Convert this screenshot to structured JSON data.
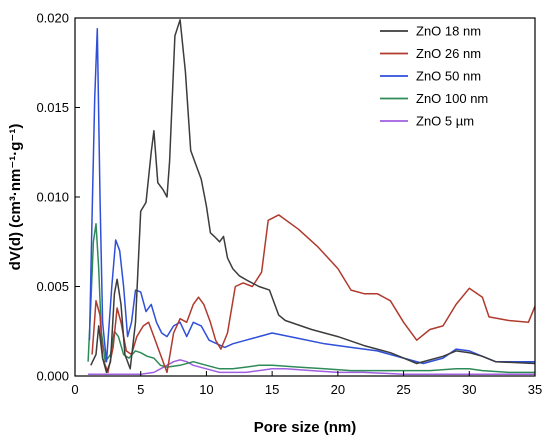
{
  "chart_data": {
    "type": "line",
    "xlabel": "Pore size (nm)",
    "ylabel": "dV(d) (cm³·nm⁻¹·g⁻¹)",
    "xlim": [
      0,
      35
    ],
    "ylim": [
      0,
      0.02
    ],
    "x_ticks": [
      "0",
      "5",
      "10",
      "15",
      "20",
      "25",
      "30",
      "35"
    ],
    "y_ticks": [
      "0.000",
      "0.005",
      "0.010",
      "0.015",
      "0.020"
    ],
    "grid": false,
    "legend_position": "top-right",
    "series": [
      {
        "name": "ZnO 18 nm",
        "color": "#3c3c3c",
        "points": [
          [
            1.2,
            0.0006
          ],
          [
            1.6,
            0.0012
          ],
          [
            1.8,
            0.0028
          ],
          [
            2.1,
            0.001
          ],
          [
            2.4,
            0.0002
          ],
          [
            2.7,
            0.0008
          ],
          [
            3.0,
            0.0046
          ],
          [
            3.2,
            0.0054
          ],
          [
            3.5,
            0.004
          ],
          [
            3.8,
            0.0012
          ],
          [
            4.2,
            0.0004
          ],
          [
            4.6,
            0.003
          ],
          [
            5.0,
            0.0092
          ],
          [
            5.4,
            0.0097
          ],
          [
            5.8,
            0.0125
          ],
          [
            6.0,
            0.0137
          ],
          [
            6.3,
            0.0108
          ],
          [
            6.7,
            0.0104
          ],
          [
            7.0,
            0.01
          ],
          [
            7.2,
            0.012
          ],
          [
            7.6,
            0.019
          ],
          [
            8.0,
            0.0199
          ],
          [
            8.4,
            0.017
          ],
          [
            8.8,
            0.0126
          ],
          [
            9.2,
            0.0118
          ],
          [
            9.6,
            0.011
          ],
          [
            10.0,
            0.0095
          ],
          [
            10.3,
            0.008
          ],
          [
            10.6,
            0.0078
          ],
          [
            11.0,
            0.0075
          ],
          [
            11.3,
            0.0078
          ],
          [
            11.6,
            0.0066
          ],
          [
            12.0,
            0.006
          ],
          [
            12.5,
            0.0056
          ],
          [
            13.2,
            0.0053
          ],
          [
            14.0,
            0.005
          ],
          [
            14.8,
            0.0048
          ],
          [
            15.5,
            0.0034
          ],
          [
            16.0,
            0.0031
          ],
          [
            18.0,
            0.0026
          ],
          [
            20.0,
            0.0022
          ],
          [
            22.0,
            0.0017
          ],
          [
            24.0,
            0.0013
          ],
          [
            25.0,
            0.001
          ],
          [
            26.0,
            0.0007
          ],
          [
            27.0,
            0.0009
          ],
          [
            28.0,
            0.0011
          ],
          [
            29.0,
            0.0014
          ],
          [
            30.0,
            0.0013
          ],
          [
            31.0,
            0.0011
          ],
          [
            32.0,
            0.0008
          ],
          [
            35.0,
            0.0007
          ]
        ]
      },
      {
        "name": "ZnO 26 nm",
        "color": "#b03a2e",
        "points": [
          [
            1.3,
            0.0012
          ],
          [
            1.6,
            0.0042
          ],
          [
            1.9,
            0.0034
          ],
          [
            2.1,
            0.001
          ],
          [
            2.5,
            0.0002
          ],
          [
            2.9,
            0.0016
          ],
          [
            3.2,
            0.0038
          ],
          [
            3.5,
            0.003
          ],
          [
            3.9,
            0.0014
          ],
          [
            4.3,
            0.0012
          ],
          [
            4.7,
            0.0022
          ],
          [
            5.2,
            0.0028
          ],
          [
            5.6,
            0.003
          ],
          [
            6.0,
            0.0022
          ],
          [
            6.4,
            0.0014
          ],
          [
            7.0,
            0.0002
          ],
          [
            7.5,
            0.0024
          ],
          [
            8.0,
            0.0032
          ],
          [
            8.5,
            0.003
          ],
          [
            9.0,
            0.004
          ],
          [
            9.4,
            0.0044
          ],
          [
            9.8,
            0.004
          ],
          [
            10.3,
            0.003
          ],
          [
            10.7,
            0.002
          ],
          [
            11.1,
            0.0015
          ],
          [
            11.6,
            0.0024
          ],
          [
            12.2,
            0.005
          ],
          [
            12.8,
            0.0052
          ],
          [
            13.5,
            0.005
          ],
          [
            14.2,
            0.0058
          ],
          [
            14.7,
            0.0087
          ],
          [
            15.5,
            0.009
          ],
          [
            17.0,
            0.0082
          ],
          [
            18.5,
            0.0072
          ],
          [
            20.0,
            0.006
          ],
          [
            21.0,
            0.0048
          ],
          [
            22.0,
            0.0046
          ],
          [
            23.0,
            0.0046
          ],
          [
            24.0,
            0.0042
          ],
          [
            25.0,
            0.003
          ],
          [
            26.0,
            0.002
          ],
          [
            27.0,
            0.0026
          ],
          [
            28.0,
            0.0028
          ],
          [
            29.0,
            0.004
          ],
          [
            30.0,
            0.0049
          ],
          [
            31.0,
            0.0044
          ],
          [
            31.5,
            0.0033
          ],
          [
            33.0,
            0.0031
          ],
          [
            34.5,
            0.003
          ],
          [
            35.0,
            0.0039
          ]
        ]
      },
      {
        "name": "ZnO 50 nm",
        "color": "#2f4fd8",
        "points": [
          [
            1.1,
            0.002
          ],
          [
            1.3,
            0.009
          ],
          [
            1.5,
            0.0155
          ],
          [
            1.7,
            0.0194
          ],
          [
            1.9,
            0.01
          ],
          [
            2.1,
            0.003
          ],
          [
            2.4,
            0.0008
          ],
          [
            2.8,
            0.005
          ],
          [
            3.1,
            0.0076
          ],
          [
            3.4,
            0.007
          ],
          [
            3.7,
            0.005
          ],
          [
            4.0,
            0.0022
          ],
          [
            4.3,
            0.003
          ],
          [
            4.6,
            0.0048
          ],
          [
            5.0,
            0.0047
          ],
          [
            5.4,
            0.0036
          ],
          [
            5.8,
            0.004
          ],
          [
            6.2,
            0.003
          ],
          [
            6.6,
            0.0024
          ],
          [
            7.0,
            0.0022
          ],
          [
            7.5,
            0.0028
          ],
          [
            8.0,
            0.003
          ],
          [
            8.5,
            0.0022
          ],
          [
            9.0,
            0.003
          ],
          [
            9.6,
            0.0028
          ],
          [
            10.2,
            0.002
          ],
          [
            10.8,
            0.0018
          ],
          [
            11.4,
            0.0016
          ],
          [
            12.0,
            0.0018
          ],
          [
            13.0,
            0.002
          ],
          [
            14.0,
            0.0022
          ],
          [
            15.0,
            0.0024
          ],
          [
            17.0,
            0.0021
          ],
          [
            19.0,
            0.0018
          ],
          [
            21.0,
            0.0016
          ],
          [
            23.0,
            0.0014
          ],
          [
            25.0,
            0.001
          ],
          [
            26.5,
            0.0007
          ],
          [
            28.0,
            0.001
          ],
          [
            29.0,
            0.0015
          ],
          [
            30.0,
            0.0014
          ],
          [
            31.0,
            0.0011
          ],
          [
            32.0,
            0.0008
          ],
          [
            35.0,
            0.0008
          ]
        ]
      },
      {
        "name": "ZnO 100 nm",
        "color": "#2e8b57",
        "points": [
          [
            1.0,
            0.0008
          ],
          [
            1.2,
            0.004
          ],
          [
            1.4,
            0.0075
          ],
          [
            1.6,
            0.0085
          ],
          [
            1.8,
            0.006
          ],
          [
            2.0,
            0.0025
          ],
          [
            2.3,
            0.0008
          ],
          [
            2.7,
            0.0012
          ],
          [
            3.0,
            0.0025
          ],
          [
            3.3,
            0.0022
          ],
          [
            3.7,
            0.0012
          ],
          [
            4.1,
            0.001
          ],
          [
            4.6,
            0.0014
          ],
          [
            5.0,
            0.0013
          ],
          [
            5.5,
            0.0011
          ],
          [
            6.0,
            0.001
          ],
          [
            6.5,
            0.0006
          ],
          [
            7.0,
            0.0005
          ],
          [
            8.0,
            0.0006
          ],
          [
            9.0,
            0.0008
          ],
          [
            10.0,
            0.0006
          ],
          [
            11.0,
            0.0004
          ],
          [
            12.0,
            0.0004
          ],
          [
            13.0,
            0.0005
          ],
          [
            14.0,
            0.0006
          ],
          [
            15.0,
            0.0006
          ],
          [
            17.0,
            0.0005
          ],
          [
            19.0,
            0.0004
          ],
          [
            21.0,
            0.0003
          ],
          [
            23.0,
            0.0003
          ],
          [
            25.0,
            0.0003
          ],
          [
            27.0,
            0.0003
          ],
          [
            29.0,
            0.0004
          ],
          [
            30.0,
            0.0004
          ],
          [
            31.0,
            0.0003
          ],
          [
            33.0,
            0.0002
          ],
          [
            35.0,
            0.0002
          ]
        ]
      },
      {
        "name": "ZnO 5 µm",
        "color": "#a05ee0",
        "points": [
          [
            1.0,
            0.0001
          ],
          [
            2.0,
            0.0001
          ],
          [
            3.0,
            0.0001
          ],
          [
            4.0,
            0.0001
          ],
          [
            5.0,
            0.0001
          ],
          [
            6.0,
            0.0002
          ],
          [
            7.0,
            0.0006
          ],
          [
            7.5,
            0.0008
          ],
          [
            8.0,
            0.0009
          ],
          [
            8.5,
            0.0008
          ],
          [
            9.0,
            0.0006
          ],
          [
            10.0,
            0.0004
          ],
          [
            11.0,
            0.0002
          ],
          [
            12.0,
            0.0002
          ],
          [
            13.0,
            0.0002
          ],
          [
            14.0,
            0.0003
          ],
          [
            15.0,
            0.0004
          ],
          [
            16.0,
            0.0004
          ],
          [
            18.0,
            0.0003
          ],
          [
            20.0,
            0.0002
          ],
          [
            22.0,
            0.0002
          ],
          [
            25.0,
            0.0001
          ],
          [
            30.0,
            0.0001
          ],
          [
            35.0,
            0.0001
          ]
        ]
      }
    ]
  }
}
